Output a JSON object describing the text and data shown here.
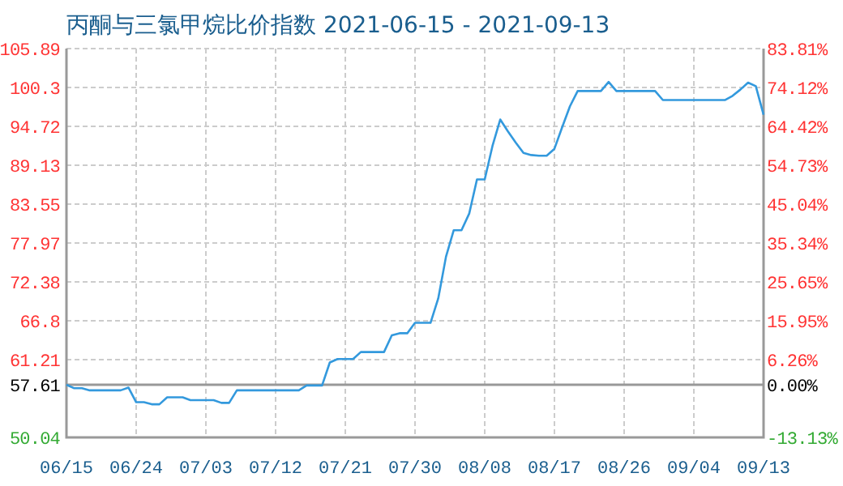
{
  "chart_data": {
    "type": "line",
    "title": "丙酮与三氯甲烷比价指数 2021-06-15 - 2021-09-13",
    "x": [
      "2021-06-15",
      "2021-06-16",
      "2021-06-17",
      "2021-06-18",
      "2021-06-22",
      "2021-06-23",
      "2021-06-24",
      "2021-06-25",
      "2021-06-26",
      "2021-06-27",
      "2021-06-28",
      "2021-06-30",
      "2021-07-01",
      "2021-07-04",
      "2021-07-05",
      "2021-07-06",
      "2021-07-07",
      "2021-07-15",
      "2021-07-16",
      "2021-07-18",
      "2021-07-19",
      "2021-07-20",
      "2021-07-22",
      "2021-07-23",
      "2021-07-26",
      "2021-07-27",
      "2021-07-28",
      "2021-07-29",
      "2021-07-30",
      "2021-08-01",
      "2021-08-02",
      "2021-08-03",
      "2021-08-04",
      "2021-08-05",
      "2021-08-06",
      "2021-08-07",
      "2021-08-08",
      "2021-08-09",
      "2021-08-10",
      "2021-08-11",
      "2021-08-12",
      "2021-08-13",
      "2021-08-14",
      "2021-08-15",
      "2021-08-16",
      "2021-08-17",
      "2021-08-18",
      "2021-08-19",
      "2021-08-20",
      "2021-08-23",
      "2021-08-24",
      "2021-08-25",
      "2021-08-30",
      "2021-08-31",
      "2021-09-08",
      "2021-09-09",
      "2021-09-10",
      "2021-09-11",
      "2021-09-12",
      "2021-09-13"
    ],
    "series": [
      {
        "color": "#3399dd",
        "values": [
          57.6,
          57.1,
          57.1,
          56.8,
          56.8,
          57.2,
          55.1,
          55.1,
          54.8,
          54.8,
          55.8,
          55.8,
          55.4,
          55.4,
          55.0,
          55.0,
          56.8,
          56.8,
          57.5,
          57.5,
          60.8,
          61.3,
          61.3,
          62.3,
          62.3,
          64.7,
          65.0,
          65.0,
          66.5,
          66.5,
          70.0,
          76.0,
          79.8,
          79.8,
          82.2,
          87.1,
          87.1,
          91.9,
          95.7,
          94.0,
          92.4,
          90.9,
          90.6,
          90.5,
          90.5,
          91.5,
          94.6,
          97.6,
          99.8,
          99.8,
          101.1,
          99.8,
          99.8,
          98.5,
          98.5,
          99.1,
          100.0,
          101.0,
          100.5,
          96.4
        ]
      }
    ],
    "xlim": [
      "2021-06-15",
      "2021-09-13"
    ],
    "xticks": [
      {
        "value": "2021-06-15",
        "label": "06/15"
      },
      {
        "value": "2021-06-24",
        "label": "06/24"
      },
      {
        "value": "2021-07-03",
        "label": "07/03"
      },
      {
        "value": "2021-07-12",
        "label": "07/12"
      },
      {
        "value": "2021-07-21",
        "label": "07/21"
      },
      {
        "value": "2021-07-30",
        "label": "07/30"
      },
      {
        "value": "2021-08-08",
        "label": "08/08"
      },
      {
        "value": "2021-08-17",
        "label": "08/17"
      },
      {
        "value": "2021-08-26",
        "label": "08/26"
      },
      {
        "value": "2021-09-04",
        "label": "09/04"
      },
      {
        "value": "2021-09-13",
        "label": "09/13"
      }
    ],
    "ylim": [
      50.04,
      105.89
    ],
    "yticks": [
      50.04,
      57.61,
      61.21,
      66.8,
      72.38,
      77.97,
      83.55,
      89.13,
      94.72,
      100.3,
      105.89
    ],
    "y2lim": [
      -13.13,
      83.81
    ],
    "y2ticks": [
      {
        "value": -13.13,
        "label": "-13.13%"
      },
      {
        "value": 0,
        "label": "0.00%"
      },
      {
        "value": 6.26,
        "label": "6.26%"
      },
      {
        "value": 15.95,
        "label": "15.95%"
      },
      {
        "value": 25.65,
        "label": "25.65%"
      },
      {
        "value": 35.34,
        "label": "35.34%"
      },
      {
        "value": 45.04,
        "label": "45.04%"
      },
      {
        "value": 54.73,
        "label": "54.73%"
      },
      {
        "value": 64.42,
        "label": "64.42%"
      },
      {
        "value": 74.12,
        "label": "74.12%"
      },
      {
        "value": 83.81,
        "label": "83.81%"
      }
    ],
    "ref_lines": [
      {
        "axis": "y",
        "value": 57.61,
        "color": "#999999"
      }
    ],
    "grid": true,
    "marker": "none",
    "line_style": "solid"
  }
}
